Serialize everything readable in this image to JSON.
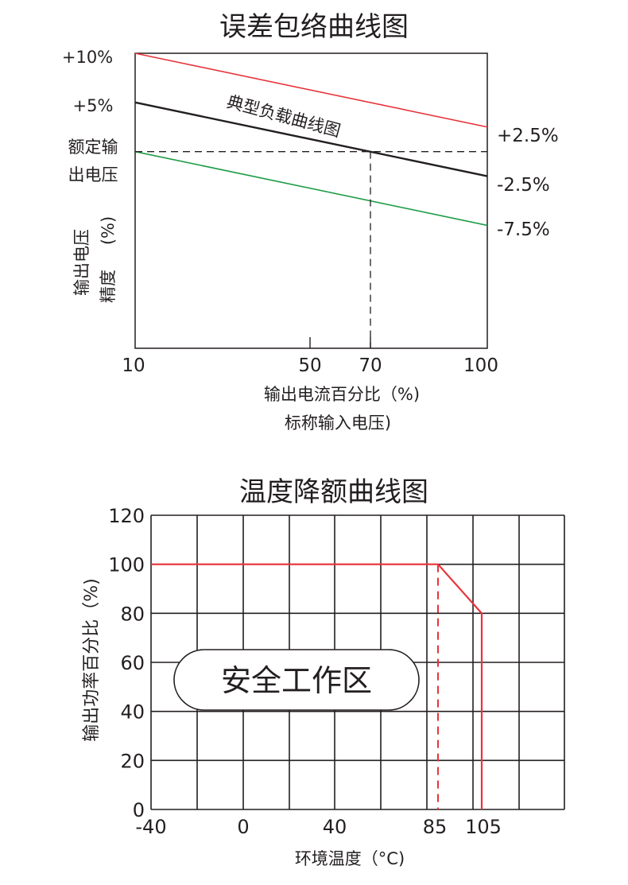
{
  "chart_data": [
    {
      "type": "line",
      "title": "误差包络曲线图",
      "xlabel_lines": [
        "输出电流百分比（%)",
        "标称输入电压)"
      ],
      "ylabel_lines": [
        "输出电压",
        "(%)",
        "精度"
      ],
      "y_ref_label_lines": [
        "额定输",
        "出电压"
      ],
      "y_left_labels": [
        "+10%",
        "+5%"
      ],
      "y_right_labels": [
        "+2.5%",
        "-2.5%",
        "-7.5%"
      ],
      "x_ticks": [
        10,
        50,
        70,
        100
      ],
      "x_tick_labels": [
        "10",
        "50",
        "70",
        "100"
      ],
      "xlim": [
        10,
        100
      ],
      "ylim": [
        -20,
        10
      ],
      "reference_value": 0,
      "marker_x": 70,
      "annotation": "典型负载曲线图",
      "series": [
        {
          "color": "#e8333a",
          "x": [
            10,
            100
          ],
          "y": [
            10,
            2.5
          ]
        },
        {
          "color": "#231f20",
          "x": [
            10,
            100
          ],
          "y": [
            5,
            -2.5
          ]
        },
        {
          "color": "#1f9d48",
          "x": [
            10,
            100
          ],
          "y": [
            0,
            -7.5
          ]
        }
      ]
    },
    {
      "type": "line",
      "title": "温度降额曲线图",
      "xlabel": "环境温度（°C)",
      "ylabel": "输出功率百分比（%)",
      "x_ticks": [
        -40,
        0,
        40,
        85,
        105
      ],
      "x_tick_labels": [
        "-40",
        "0",
        "40",
        "85",
        "105"
      ],
      "y_ticks": [
        0,
        20,
        40,
        60,
        80,
        100,
        120
      ],
      "y_tick_labels": [
        "0",
        "20",
        "40",
        "60",
        "80",
        "100",
        "120"
      ],
      "xlim": [
        -40,
        115
      ],
      "ylim": [
        0,
        120
      ],
      "grid": true,
      "series": [
        {
          "color": "#e8333a",
          "x": [
            -40,
            85,
            105,
            105
          ],
          "y": [
            100,
            100,
            80,
            0
          ]
        }
      ],
      "dashed_drop_x": 85,
      "safe_zone_label": "安全工作区"
    }
  ]
}
